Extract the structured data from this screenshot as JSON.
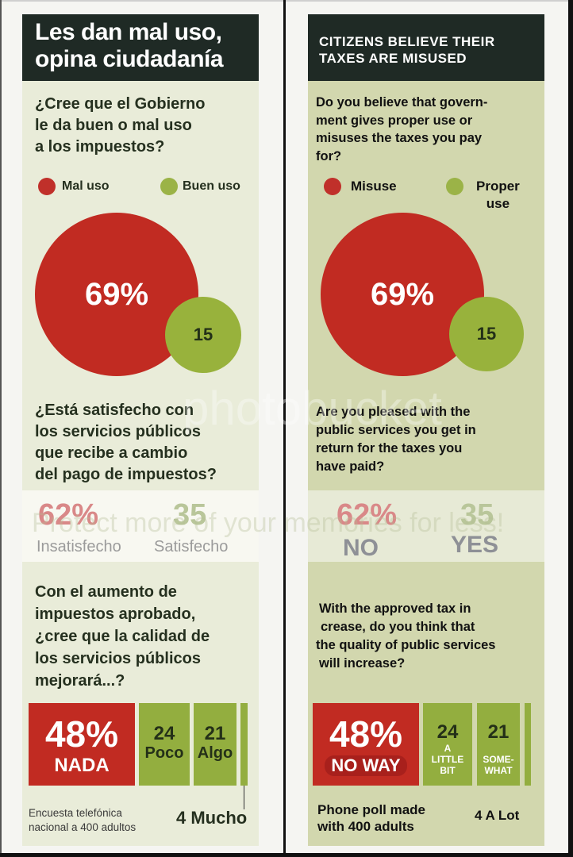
{
  "left": {
    "title_line1": "Les dan mal uso,",
    "title_line2": "opina ciudadanía",
    "q1": [
      "¿Cree que el Gobierno",
      "le da buen o mal uso",
      "a los impuestos?"
    ],
    "legend_bad": "Mal uso",
    "legend_good": "Buen uso",
    "bubble_bad": "69%",
    "bubble_good": "15",
    "q2": [
      "¿Está satisfecho con",
      "los servicios públicos",
      "que recibe a cambio",
      "del pago de impuestos?"
    ],
    "q2_bad_value": "62%",
    "q2_good_value": "35",
    "q2_bad_label": "Insatisfecho",
    "q2_good_label": "Satisfecho",
    "q3": [
      "Con el aumento de",
      "impuestos aprobado,",
      "¿cree que la calidad de",
      "los servicios públicos",
      "mejorará...?"
    ],
    "bars": [
      {
        "value": "48%",
        "label": "NADA"
      },
      {
        "value": "24",
        "label": "Poco"
      },
      {
        "value": "21",
        "label": "Algo"
      }
    ],
    "mucho": "4 Mucho",
    "note": [
      "Encuesta telefónica",
      "nacional a 400 adultos"
    ]
  },
  "right": {
    "title_line1": "CITIZENS BELIEVE THEIR",
    "title_line2": "TAXES ARE MISUSED",
    "q1": [
      "Do you believe that govern-",
      "ment gives proper use or",
      "misuses the taxes you pay",
      "for?"
    ],
    "legend_bad": "Misuse",
    "legend_good_1": "Proper",
    "legend_good_2": "use",
    "bubble_bad": "69%",
    "bubble_good": "15",
    "q2": [
      " Are you pleased with the",
      "public services you get in",
      "return for the taxes you",
      "have paid?"
    ],
    "q2_bad_value": "62%",
    "q2_good_value": "35",
    "q2_bad_label": "NO",
    "q2_good_label": "YES",
    "q3": [
      "With the approved tax in",
      "crease, do you think that",
      "the quality of public services",
      "will increase?"
    ],
    "bars": [
      {
        "value": "48%",
        "label": "NO WAY"
      },
      {
        "value": "24",
        "label_lines": [
          "A",
          "LITTLE",
          "BIT"
        ]
      },
      {
        "value": "21",
        "label_lines": [
          "SOME-",
          "WHAT"
        ]
      }
    ],
    "mucho": "4 A Lot",
    "note": [
      "Phone poll made",
      "with 400 adults"
    ]
  },
  "watermark": {
    "logo": "photobucket",
    "slogan": "Protect more of your memories for less!"
  },
  "colors": {
    "red": "#c12b22",
    "green": "#98b23c",
    "header": "#1f2a25"
  },
  "chart_data": [
    {
      "type": "bubble",
      "title": "¿Cree que el Gobierno le da buen o mal uso a los impuestos?",
      "categories": [
        "Mal uso",
        "Buen uso"
      ],
      "values": [
        69,
        15
      ],
      "unit": "%"
    },
    {
      "type": "table",
      "title": "¿Está satisfecho con los servicios públicos que recibe a cambio del pago de impuestos?",
      "categories": [
        "Insatisfecho",
        "Satisfecho"
      ],
      "values": [
        62,
        35
      ],
      "unit": "%"
    },
    {
      "type": "bar",
      "title": "¿cree que la calidad de los servicios públicos mejorará...?",
      "categories": [
        "Nada",
        "Poco",
        "Algo",
        "Mucho"
      ],
      "values": [
        48,
        24,
        21,
        4
      ],
      "unit": "%"
    }
  ]
}
